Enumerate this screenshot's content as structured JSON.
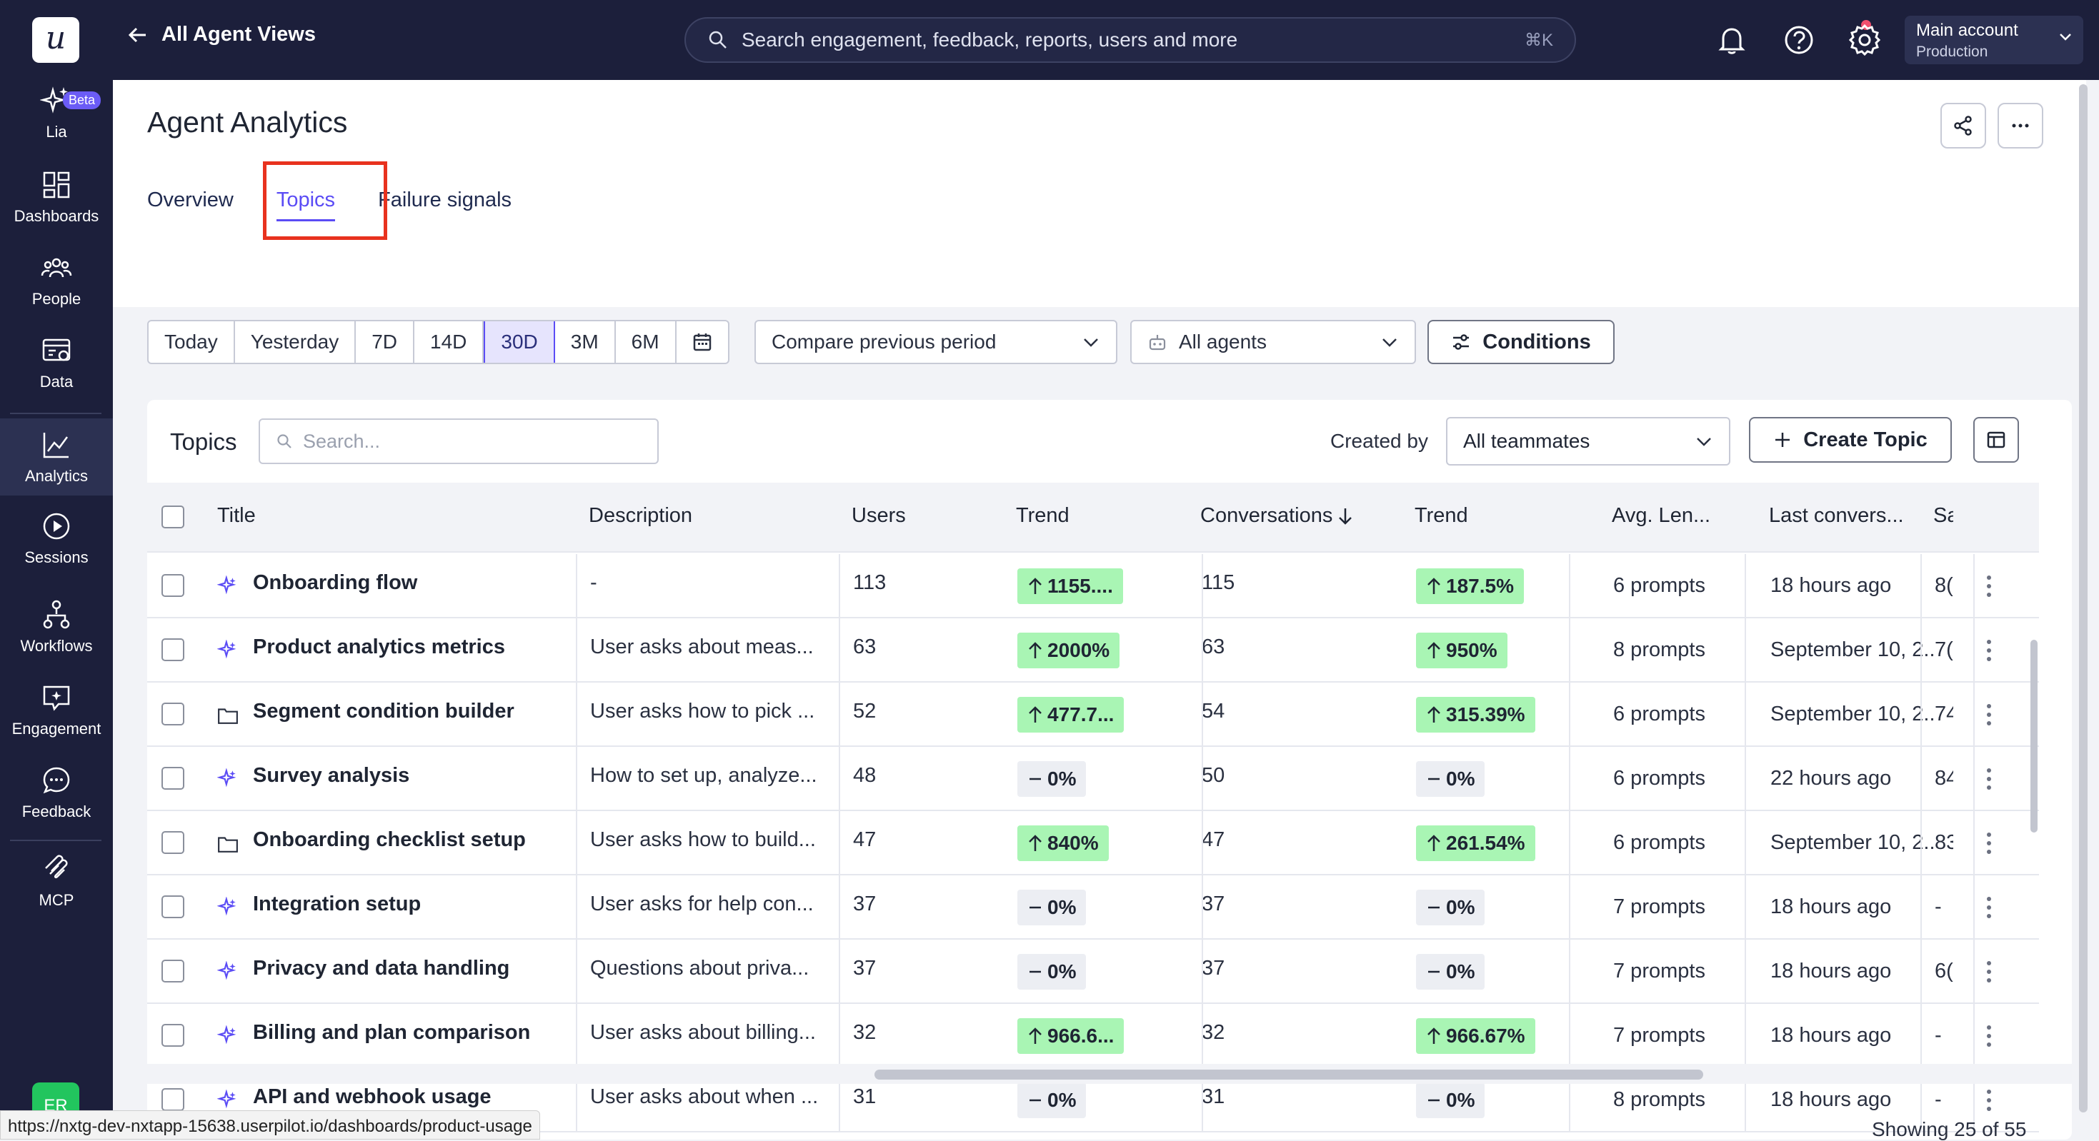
{
  "app": {
    "logo_letter": "u"
  },
  "sidebar": {
    "beta_badge": "Beta",
    "items": [
      {
        "label": "Lia",
        "icon": "sparkle-icon"
      },
      {
        "label": "Dashboards",
        "icon": "dashboard-icon"
      },
      {
        "label": "People",
        "icon": "people-icon"
      },
      {
        "label": "Data",
        "icon": "data-icon"
      },
      {
        "label": "Analytics",
        "icon": "analytics-icon",
        "active": true
      },
      {
        "label": "Sessions",
        "icon": "play-icon"
      },
      {
        "label": "Workflows",
        "icon": "workflow-icon"
      },
      {
        "label": "Engagement",
        "icon": "engagement-icon"
      },
      {
        "label": "Feedback",
        "icon": "chat-icon"
      },
      {
        "label": "MCP",
        "icon": "mcp-icon"
      }
    ],
    "avatar_initials": "ER"
  },
  "topbar": {
    "back_label": "All Agent Views",
    "search_placeholder": "Search engagement, feedback, reports, users and more",
    "search_shortcut": "⌘K",
    "account_name": "Main account",
    "account_env": "Production"
  },
  "page": {
    "title": "Agent Analytics",
    "tabs": [
      "Overview",
      "Topics",
      "Failure signals"
    ],
    "active_tab": "Topics"
  },
  "filters": {
    "periods": [
      "Today",
      "Yesterday",
      "7D",
      "14D",
      "30D",
      "3M",
      "6M"
    ],
    "active_period": "30D",
    "compare": "Compare previous period",
    "agents": "All agents",
    "conditions": "Conditions"
  },
  "topics_card": {
    "title": "Topics",
    "search_placeholder": "Search...",
    "created_by_label": "Created by",
    "created_by_value": "All teammates",
    "create_button": "Create Topic",
    "showing": "Showing 25 of 55"
  },
  "table": {
    "columns": [
      "Title",
      "Description",
      "Users",
      "Trend",
      "Conversations",
      "Trend",
      "Avg. Len...",
      "Last convers...",
      "Sa"
    ],
    "rows": [
      {
        "icon": "sparkle-icon",
        "title": "Onboarding flow",
        "description": "-",
        "users": "113",
        "users_trend": "1155....",
        "users_dir": "up",
        "conversations": "115",
        "conv_trend": "187.5%",
        "conv_dir": "up",
        "avg_len": "6 prompts",
        "last": "18 hours ago",
        "sa": "8("
      },
      {
        "icon": "sparkle-icon",
        "title": "Product analytics metrics",
        "description": "User asks about meas...",
        "users": "63",
        "users_trend": "2000%",
        "users_dir": "up",
        "conversations": "63",
        "conv_trend": "950%",
        "conv_dir": "up",
        "avg_len": "8 prompts",
        "last": "September 10, 2...",
        "sa": "7("
      },
      {
        "icon": "folder-icon",
        "title": "Segment condition builder",
        "description": "User asks how to pick ...",
        "users": "52",
        "users_trend": "477.7...",
        "users_dir": "up",
        "conversations": "54",
        "conv_trend": "315.39%",
        "conv_dir": "up",
        "avg_len": "6 prompts",
        "last": "September 10, 2...",
        "sa": "74"
      },
      {
        "icon": "sparkle-icon",
        "title": "Survey analysis",
        "description": "How to set up, analyze...",
        "users": "48",
        "users_trend": "0%",
        "users_dir": "flat",
        "conversations": "50",
        "conv_trend": "0%",
        "conv_dir": "flat",
        "avg_len": "6 prompts",
        "last": "22 hours ago",
        "sa": "84"
      },
      {
        "icon": "folder-icon",
        "title": "Onboarding checklist setup",
        "description": "User asks how to build...",
        "users": "47",
        "users_trend": "840%",
        "users_dir": "up",
        "conversations": "47",
        "conv_trend": "261.54%",
        "conv_dir": "up",
        "avg_len": "6 prompts",
        "last": "September 10, 2...",
        "sa": "83"
      },
      {
        "icon": "sparkle-icon",
        "title": "Integration setup",
        "description": "User asks for help con...",
        "users": "37",
        "users_trend": "0%",
        "users_dir": "flat",
        "conversations": "37",
        "conv_trend": "0%",
        "conv_dir": "flat",
        "avg_len": "7 prompts",
        "last": "18 hours ago",
        "sa": "-"
      },
      {
        "icon": "sparkle-icon",
        "title": "Privacy and data handling",
        "description": "Questions about priva...",
        "users": "37",
        "users_trend": "0%",
        "users_dir": "flat",
        "conversations": "37",
        "conv_trend": "0%",
        "conv_dir": "flat",
        "avg_len": "7 prompts",
        "last": "18 hours ago",
        "sa": "6("
      },
      {
        "icon": "sparkle-icon",
        "title": "Billing and plan comparison",
        "description": "User asks about billing...",
        "users": "32",
        "users_trend": "966.6...",
        "users_dir": "up",
        "conversations": "32",
        "conv_trend": "966.67%",
        "conv_dir": "up",
        "avg_len": "7 prompts",
        "last": "18 hours ago",
        "sa": "-"
      },
      {
        "icon": "sparkle-icon",
        "title": "API and webhook usage",
        "description": "User asks about when ...",
        "users": "31",
        "users_trend": "0%",
        "users_dir": "flat",
        "conversations": "31",
        "conv_trend": "0%",
        "conv_dir": "flat",
        "avg_len": "8 prompts",
        "last": "18 hours ago",
        "sa": "-"
      }
    ]
  },
  "status_url": "https://nxtg-dev-nxtapp-15638.userpilot.io/dashboards/product-usage",
  "colors": {
    "sidebar_bg": "#1c1f3b",
    "accent": "#5b4cf5",
    "trend_up_bg": "#a9f5b4",
    "highlight": "#e8321e"
  }
}
